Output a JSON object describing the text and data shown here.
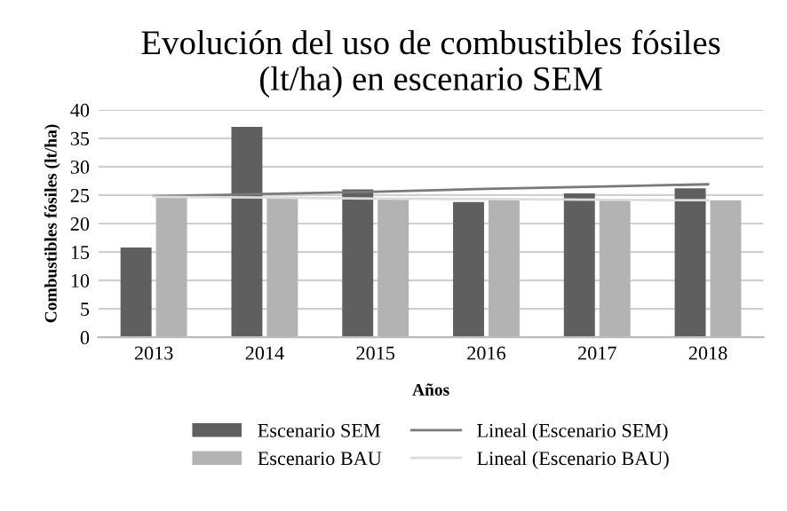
{
  "chart_data": {
    "type": "bar",
    "title": "Evolución del uso de combustibles fósiles\n(lt/ha) en escenario SEM",
    "xlabel": "Años",
    "ylabel": "Combustibles fósiles (lt/ha)",
    "categories": [
      "2013",
      "2014",
      "2015",
      "2016",
      "2017",
      "2018"
    ],
    "series": [
      {
        "name": "Escenario SEM",
        "color": "#5f5f5f",
        "values": [
          15.8,
          37,
          26,
          23.8,
          25.3,
          26.2
        ]
      },
      {
        "name": "Escenario BAU",
        "color": "#b3b3b3",
        "values": [
          24.8,
          24.6,
          24.3,
          24.3,
          24.2,
          24.1
        ]
      },
      {
        "name": "Lineal (Escenario SEM)",
        "type": "line",
        "color": "#7a7a7a",
        "values": [
          24.8,
          25.2,
          25.6,
          26.1,
          26.5,
          26.9
        ]
      },
      {
        "name": "Lineal (Escenario BAU)",
        "type": "line",
        "color": "#dcdcdc",
        "values": [
          24.7,
          24.6,
          24.4,
          24.3,
          24.2,
          24.1
        ]
      }
    ],
    "ylim": [
      0,
      40
    ],
    "yticks": [
      0,
      5,
      10,
      15,
      20,
      25,
      30,
      35,
      40
    ],
    "grid": "y",
    "legend": "bottom"
  }
}
